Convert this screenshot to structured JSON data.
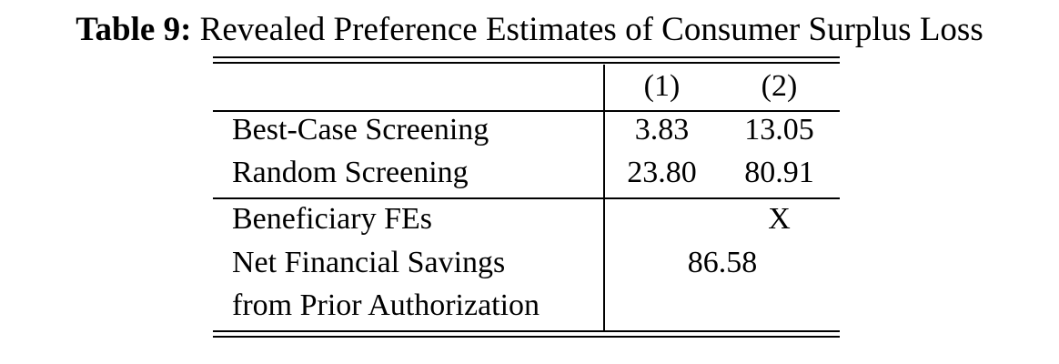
{
  "caption": {
    "label": "Table 9:",
    "text": "Revealed Preference Estimates of Consumer Surplus Loss"
  },
  "table": {
    "columns": [
      "(1)",
      "(2)"
    ],
    "rows": [
      {
        "label": "Best-Case Screening",
        "col1": "3.83",
        "col2": "13.05"
      },
      {
        "label": "Random Screening",
        "col1": "23.80",
        "col2": "80.91"
      }
    ],
    "fe_row": {
      "label": "Beneficiary FEs",
      "col1": "",
      "col2": "X"
    },
    "savings_row": {
      "label_line1": "Net Financial Savings",
      "label_line2": "from Prior Authorization",
      "value": "86.58"
    }
  }
}
